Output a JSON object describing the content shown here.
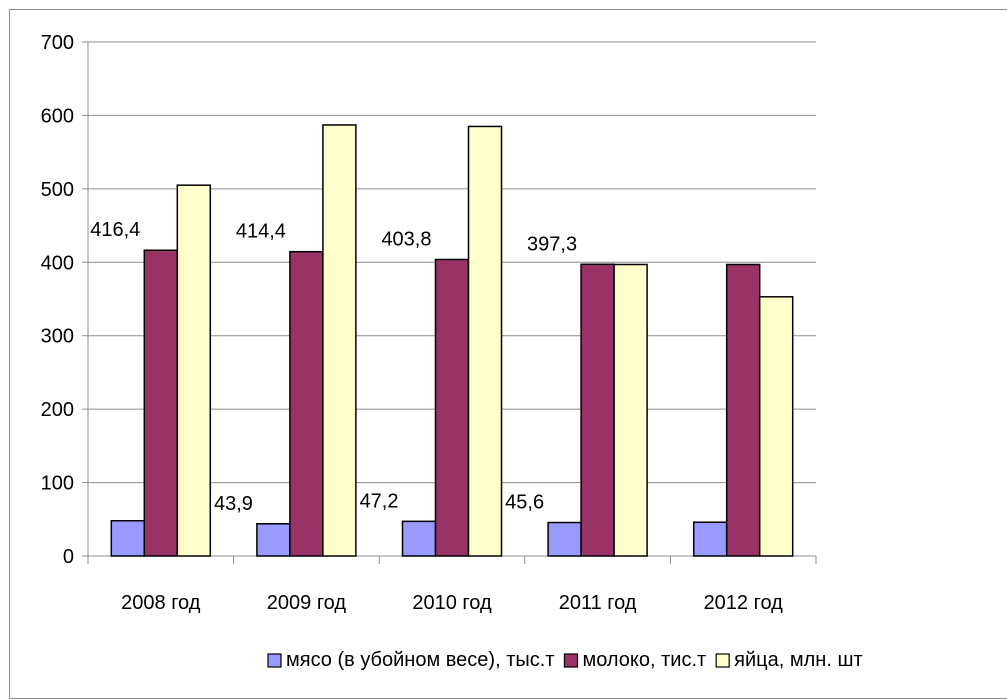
{
  "chart_data": {
    "type": "bar",
    "title": "",
    "xlabel": "",
    "ylabel": "",
    "ylim": [
      0,
      700
    ],
    "y_ticks": [
      "0",
      "100",
      "200",
      "300",
      "400",
      "500",
      "600",
      "700"
    ],
    "grid": "horizontal",
    "legend_position": "bottom",
    "categories": [
      "2008 год",
      "2009 год",
      "2010 год",
      "2011 год",
      "2012 год"
    ],
    "series": [
      {
        "name": "мясо (в убойном весе), тыс.т",
        "color": "#9999ff",
        "values": [
          48,
          43.9,
          47.2,
          45.6,
          46
        ],
        "labels": [
          "",
          "43,9",
          "47,2",
          "45,6",
          ""
        ]
      },
      {
        "name": "молоко, тис.т",
        "color": "#993366",
        "values": [
          416.4,
          414.4,
          403.8,
          397.3,
          397
        ],
        "labels": [
          "416,4",
          "414,4",
          "403,8",
          "397,3",
          ""
        ]
      },
      {
        "name": "яйца, млн. шт",
        "color": "#ffffcc",
        "values": [
          505,
          587,
          585,
          397,
          353
        ],
        "labels": [
          "",
          "",
          "",
          "",
          ""
        ]
      }
    ]
  }
}
